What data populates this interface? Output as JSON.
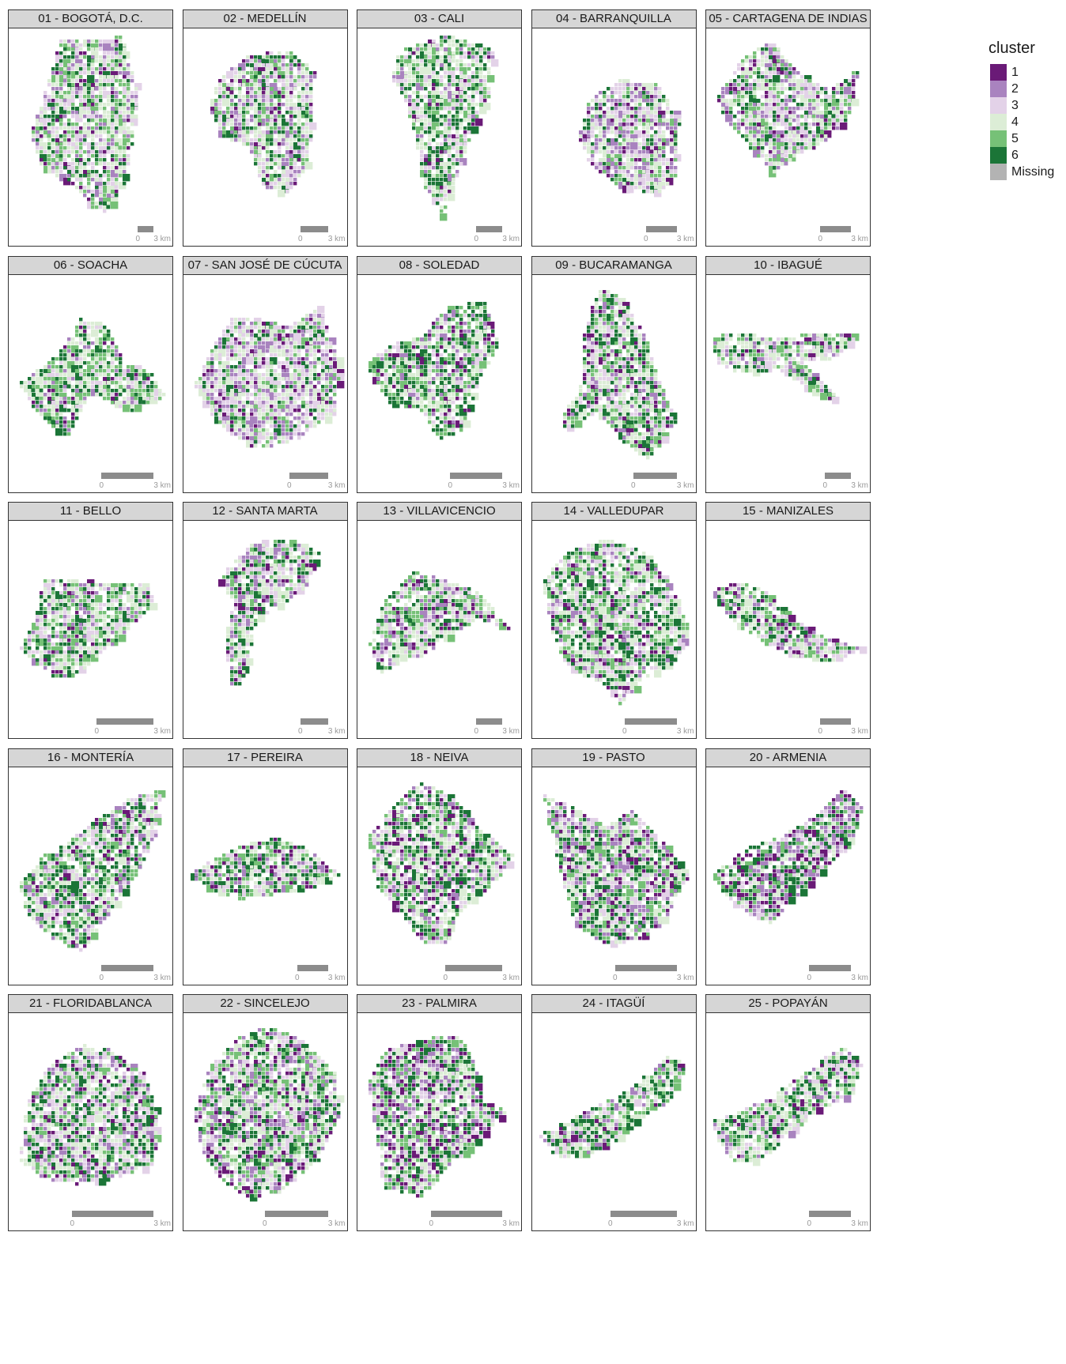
{
  "legend": {
    "title": "cluster",
    "items": [
      {
        "label": "1",
        "color": "#6a1a77"
      },
      {
        "label": "2",
        "color": "#a983bf"
      },
      {
        "label": "3",
        "color": "#e3d2e8"
      },
      {
        "label": "4",
        "color": "#dcedd6"
      },
      {
        "label": "5",
        "color": "#76c177"
      },
      {
        "label": "6",
        "color": "#1b7537"
      },
      {
        "label": "Missing",
        "color": "#b3b3b3"
      }
    ]
  },
  "scale_bar": {
    "left_label": "0",
    "right_label": "3 km"
  },
  "cities": [
    {
      "title": "01 - BOGOTÁ, D.C.",
      "weights": [
        0.06,
        0.12,
        0.22,
        0.3,
        0.18,
        0.12
      ],
      "sb_frac": 0.1
    },
    {
      "title": "02 - MEDELLÍN",
      "weights": [
        0.06,
        0.16,
        0.22,
        0.26,
        0.16,
        0.14
      ],
      "sb_frac": 0.18
    },
    {
      "title": "03 - CALI",
      "weights": [
        0.04,
        0.06,
        0.14,
        0.3,
        0.22,
        0.24
      ],
      "sb_frac": 0.17
    },
    {
      "title": "04 - BARRANQUILLA",
      "weights": [
        0.08,
        0.26,
        0.22,
        0.22,
        0.12,
        0.1
      ],
      "sb_frac": 0.2
    },
    {
      "title": "05 - CARTAGENA DE INDIAS",
      "weights": [
        0.08,
        0.16,
        0.2,
        0.26,
        0.18,
        0.12
      ],
      "sb_frac": 0.2
    },
    {
      "title": "06 - SOACHA",
      "weights": [
        0.06,
        0.08,
        0.12,
        0.22,
        0.28,
        0.24
      ],
      "sb_frac": 0.34
    },
    {
      "title": "07 - SAN JOSÉ DE CÚCUTA",
      "weights": [
        0.08,
        0.22,
        0.24,
        0.24,
        0.12,
        0.1
      ],
      "sb_frac": 0.25
    },
    {
      "title": "08 - SOLEDAD",
      "weights": [
        0.06,
        0.1,
        0.12,
        0.22,
        0.24,
        0.26
      ],
      "sb_frac": 0.34
    },
    {
      "title": "09 - BUCARAMANGA",
      "weights": [
        0.08,
        0.1,
        0.16,
        0.26,
        0.2,
        0.2
      ],
      "sb_frac": 0.28
    },
    {
      "title": "10 - IBAGUÉ",
      "weights": [
        0.06,
        0.12,
        0.18,
        0.28,
        0.2,
        0.16
      ],
      "sb_frac": 0.17
    },
    {
      "title": "11 - BELLO",
      "weights": [
        0.06,
        0.1,
        0.16,
        0.26,
        0.22,
        0.2
      ],
      "sb_frac": 0.37
    },
    {
      "title": "12 - SANTA MARTA",
      "weights": [
        0.1,
        0.14,
        0.22,
        0.22,
        0.14,
        0.18
      ],
      "sb_frac": 0.18
    },
    {
      "title": "13 - VILLAVICENCIO",
      "weights": [
        0.1,
        0.12,
        0.18,
        0.24,
        0.18,
        0.18
      ],
      "sb_frac": 0.17
    },
    {
      "title": "14 - VALLEDUPAR",
      "weights": [
        0.08,
        0.1,
        0.18,
        0.26,
        0.18,
        0.2
      ],
      "sb_frac": 0.34
    },
    {
      "title": "15 - MANIZALES",
      "weights": [
        0.12,
        0.14,
        0.18,
        0.22,
        0.16,
        0.18
      ],
      "sb_frac": 0.2
    },
    {
      "title": "16 - MONTERÍA",
      "weights": [
        0.06,
        0.12,
        0.16,
        0.22,
        0.2,
        0.24
      ],
      "sb_frac": 0.34
    },
    {
      "title": "17 - PEREIRA",
      "weights": [
        0.08,
        0.12,
        0.16,
        0.2,
        0.2,
        0.24
      ],
      "sb_frac": 0.2
    },
    {
      "title": "18 - NEIVA",
      "weights": [
        0.12,
        0.12,
        0.16,
        0.22,
        0.16,
        0.22
      ],
      "sb_frac": 0.37
    },
    {
      "title": "19 - PASTO",
      "weights": [
        0.12,
        0.16,
        0.14,
        0.2,
        0.18,
        0.2
      ],
      "sb_frac": 0.4
    },
    {
      "title": "20 - ARMENIA",
      "weights": [
        0.14,
        0.2,
        0.16,
        0.12,
        0.14,
        0.24
      ],
      "sb_frac": 0.27
    },
    {
      "title": "21 - FLORIDABLANCA",
      "weights": [
        0.06,
        0.14,
        0.22,
        0.22,
        0.14,
        0.22
      ],
      "sb_frac": 0.53
    },
    {
      "title": "22 - SINCELEJO",
      "weights": [
        0.1,
        0.16,
        0.16,
        0.22,
        0.18,
        0.18
      ],
      "sb_frac": 0.41
    },
    {
      "title": "23 - PALMIRA",
      "weights": [
        0.16,
        0.16,
        0.12,
        0.18,
        0.18,
        0.2
      ],
      "sb_frac": 0.46
    },
    {
      "title": "24 - ITAGÜÍ",
      "weights": [
        0.04,
        0.08,
        0.16,
        0.26,
        0.2,
        0.26
      ],
      "sb_frac": 0.43
    },
    {
      "title": "25 - POPAYÁN",
      "weights": [
        0.06,
        0.14,
        0.18,
        0.24,
        0.18,
        0.2
      ],
      "sb_frac": 0.27
    }
  ]
}
